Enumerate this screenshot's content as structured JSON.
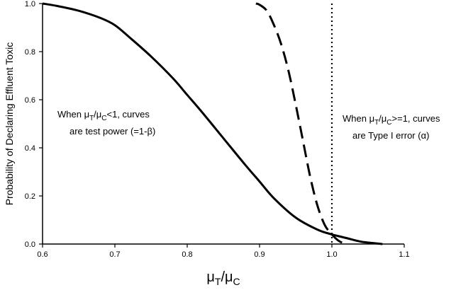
{
  "chart_data": {
    "type": "line",
    "ylabel": "Probability of Declaring Effluent Toxic",
    "xlabel": {
      "main1": "μ",
      "sub1": "T",
      "slash": "/",
      "main2": "μ",
      "sub2": "C"
    },
    "xlim": [
      0.6,
      1.1
    ],
    "ylim": [
      0.0,
      1.0
    ],
    "x_ticks": [
      "0.6",
      "0.7",
      "0.8",
      "0.9",
      "1.0",
      "1.1"
    ],
    "y_ticks": [
      "0.0",
      "0.2",
      "0.4",
      "0.6",
      "0.8",
      "1.0"
    ],
    "reference_line": {
      "x": 1.0,
      "style": "dotted"
    },
    "series": [
      {
        "style": "solid",
        "x": [
          0.6,
          0.62,
          0.65,
          0.68,
          0.7,
          0.72,
          0.75,
          0.78,
          0.8,
          0.82,
          0.85,
          0.88,
          0.9,
          0.92,
          0.95,
          0.98,
          1.0,
          1.02,
          1.04,
          1.06,
          1.07
        ],
        "y": [
          1.0,
          0.99,
          0.97,
          0.94,
          0.91,
          0.86,
          0.78,
          0.69,
          0.62,
          0.55,
          0.44,
          0.33,
          0.26,
          0.19,
          0.11,
          0.06,
          0.04,
          0.025,
          0.01,
          0.003,
          0.0
        ]
      },
      {
        "style": "dashed",
        "x": [
          0.895,
          0.9,
          0.91,
          0.92,
          0.93,
          0.94,
          0.95,
          0.96,
          0.97,
          0.98,
          0.99,
          1.0,
          1.01,
          1.02
        ],
        "y": [
          1.0,
          0.995,
          0.97,
          0.91,
          0.83,
          0.72,
          0.58,
          0.43,
          0.28,
          0.16,
          0.08,
          0.04,
          0.012,
          0.0
        ]
      }
    ],
    "annotations": [
      {
        "id": "left",
        "line1": {
          "pre": "When μ",
          "s1": "T",
          "mid": "/μ",
          "s2": "C",
          "post": "<1, curves"
        },
        "line2": "are test power (=1-β)"
      },
      {
        "id": "right",
        "line1": {
          "pre": "When μ",
          "s1": "T",
          "mid": "/μ",
          "s2": "C",
          "post": ">=1, curves"
        },
        "line2": "are Type I error (α)"
      }
    ]
  }
}
